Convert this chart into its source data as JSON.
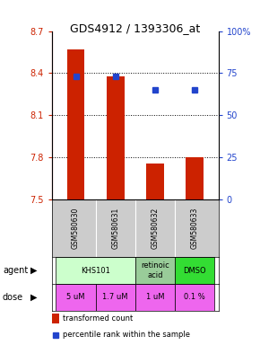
{
  "title": "GDS4912 / 1393306_at",
  "samples": [
    "GSM580630",
    "GSM580631",
    "GSM580632",
    "GSM580633"
  ],
  "bar_values": [
    8.57,
    8.38,
    7.76,
    7.8
  ],
  "bar_baseline": 7.5,
  "bar_color": "#cc2200",
  "percentile_values": [
    73,
    73,
    65,
    65
  ],
  "percentile_color": "#2244cc",
  "ylim_left": [
    7.5,
    8.7
  ],
  "ylim_right": [
    0,
    100
  ],
  "yticks_left": [
    7.5,
    7.8,
    8.1,
    8.4,
    8.7
  ],
  "yticks_right": [
    0,
    25,
    50,
    75,
    100
  ],
  "ytick_labels_left": [
    "7.5",
    "7.8",
    "8.1",
    "8.4",
    "8.7"
  ],
  "ytick_labels_right": [
    "0",
    "25",
    "50",
    "75",
    "100%"
  ],
  "agent_spans": [
    {
      "cols": [
        0,
        1
      ],
      "label": "KHS101",
      "color": "#ccffcc"
    },
    {
      "cols": [
        2,
        2
      ],
      "label": "retinoic\nacid",
      "color": "#99cc99"
    },
    {
      "cols": [
        3,
        3
      ],
      "label": "DMSO",
      "color": "#33dd33"
    }
  ],
  "doses": [
    {
      "col": 0,
      "label": "5 uM",
      "color": "#ee66ee"
    },
    {
      "col": 1,
      "label": "1.7 uM",
      "color": "#ee66ee"
    },
    {
      "col": 2,
      "label": "1 uM",
      "color": "#ee66ee"
    },
    {
      "col": 3,
      "label": "0.1 %",
      "color": "#ee66ee"
    }
  ],
  "agent_label": "agent",
  "dose_label": "dose",
  "legend_bar_color": "#cc2200",
  "legend_dot_color": "#2244cc",
  "legend_bar_label": "transformed count",
  "legend_dot_label": "percentile rank within the sample",
  "bar_width": 0.45,
  "sample_bg": "#cccccc",
  "grid_color": "black",
  "grid_style": ":"
}
